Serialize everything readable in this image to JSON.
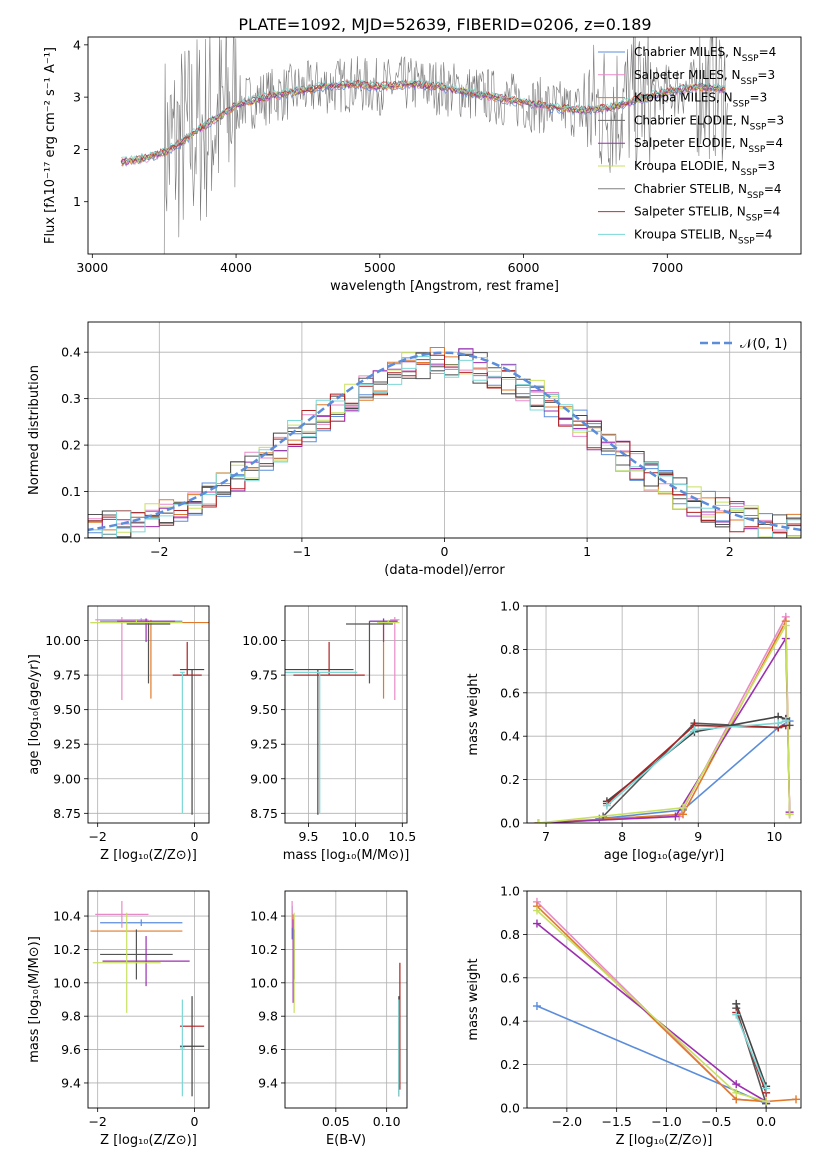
{
  "figure": {
    "title": "PLATE=1092, MJD=52639, FIBERID=0206, z=0.189"
  },
  "colors": [
    "#5b8ddb",
    "#e88ac8",
    "#e07a2a",
    "#555555",
    "#9b2fb0",
    "#c8e060",
    "#444444",
    "#b02020",
    "#7dd8d8"
  ],
  "spectrum_colors": [
    "#5b8ddb",
    "#e88ac8",
    "#e07a2a",
    "#6a6a6a",
    "#9b2fb0",
    "#c8e060",
    "#808080",
    "#c03030",
    "#7ad8d8"
  ],
  "chart_data": [
    {
      "id": "spectrum",
      "type": "line",
      "xlabel": "wavelength [Angstrom, rest frame]",
      "ylabel": "Flux [fλ10⁻¹⁷ erg cm⁻² s⁻¹ A⁻¹]",
      "xlim": [
        2970,
        7930
      ],
      "ylim": [
        0,
        4.15
      ],
      "xticks": [
        3000,
        4000,
        5000,
        6000,
        7000
      ],
      "yticks": [
        1,
        2,
        3,
        4
      ],
      "legend_position": "upper right",
      "model_x": [
        3200,
        3300,
        3400,
        3500,
        3600,
        3700,
        3800,
        3900,
        4000,
        4200,
        4400,
        4600,
        4800,
        5000,
        5200,
        5400,
        5600,
        5800,
        6000,
        6200,
        6400,
        6600,
        6800,
        7000,
        7200,
        7400
      ],
      "model_y": [
        1.75,
        1.8,
        1.85,
        1.95,
        2.1,
        2.3,
        2.5,
        2.65,
        2.85,
        3.0,
        3.1,
        3.2,
        3.25,
        3.2,
        3.25,
        3.2,
        3.1,
        3.0,
        2.9,
        2.8,
        2.75,
        2.8,
        2.95,
        3.1,
        3.2,
        3.15
      ],
      "series": [
        {
          "name": "Chabrier MILES, N_SSP=4",
          "label_main": "Chabrier MILES, N",
          "label_sub": "SSP",
          "label_tail": "=4"
        },
        {
          "name": "Salpeter MILES, N_SSP=3",
          "label_main": "Salpeter MILES, N",
          "label_sub": "SSP",
          "label_tail": "=3"
        },
        {
          "name": "Kroupa MILES, N_SSP=3",
          "label_main": "Kroupa MILES, N",
          "label_sub": "SSP",
          "label_tail": "=3"
        },
        {
          "name": "Chabrier ELODIE, N_SSP=3",
          "label_main": "Chabrier ELODIE, N",
          "label_sub": "SSP",
          "label_tail": "=3"
        },
        {
          "name": "Salpeter ELODIE, N_SSP=4",
          "label_main": "Salpeter ELODIE, N",
          "label_sub": "SSP",
          "label_tail": "=4"
        },
        {
          "name": "Kroupa ELODIE, N_SSP=3",
          "label_main": "Kroupa ELODIE, N",
          "label_sub": "SSP",
          "label_tail": "=3"
        },
        {
          "name": "Chabrier STELIB, N_SSP=4",
          "label_main": "Chabrier STELIB, N",
          "label_sub": "SSP",
          "label_tail": "=4"
        },
        {
          "name": "Salpeter STELIB, N_SSP=4",
          "label_main": "Salpeter STELIB, N",
          "label_sub": "SSP",
          "label_tail": "=4"
        },
        {
          "name": "Kroupa STELIB, N_SSP=4",
          "label_main": "Kroupa STELIB, N",
          "label_sub": "SSP",
          "label_tail": "=4"
        }
      ]
    },
    {
      "id": "residuals",
      "type": "histogram",
      "xlabel": "(data-model)/error",
      "ylabel": "Normed distribution",
      "xlim": [
        -2.5,
        2.5
      ],
      "ylim": [
        0,
        0.465
      ],
      "xticks": [
        -2,
        -1,
        0,
        1,
        2
      ],
      "yticks": [
        0.0,
        0.1,
        0.2,
        0.3,
        0.4
      ],
      "grid": true,
      "bin_width": 0.1,
      "reference_curve": {
        "label": "𝒩(0, 1)",
        "mean": 0,
        "sigma": 1,
        "color": "#5b8ddb"
      },
      "legend_position": "upper right"
    },
    {
      "id": "age_vs_Z",
      "type": "scatter",
      "xlabel": "Z [log₁₀(Z/Z⊙)]",
      "ylabel": "age  [log₁₀(age/yr)]",
      "xlim": [
        -2.2,
        0.3
      ],
      "ylim": [
        8.68,
        10.25
      ],
      "xticks": [
        -2,
        0
      ],
      "yticks": [
        8.75,
        9.0,
        9.25,
        9.5,
        9.75,
        10.0
      ],
      "grid": true,
      "points": [
        {
          "x": -1.1,
          "y": 10.14,
          "xerr": 0.85,
          "yerr_lo": 0.0,
          "yerr_hi": 0.02
        },
        {
          "x": -1.5,
          "y": 10.15,
          "xerr": 0.55,
          "yerr_lo": 0.58,
          "yerr_hi": 0.02
        },
        {
          "x": -0.9,
          "y": 10.13,
          "xerr": 1.25,
          "yerr_lo": 0.55,
          "yerr_hi": 0.02
        },
        {
          "x": -0.95,
          "y": 10.12,
          "xerr": 0.45,
          "yerr_lo": 0.43,
          "yerr_hi": 0.02
        },
        {
          "x": -1.0,
          "y": 10.14,
          "xerr": 0.6,
          "yerr_lo": 0.15,
          "yerr_hi": 0.02
        },
        {
          "x": -1.2,
          "y": 10.13,
          "xerr": 0.95,
          "yerr_lo": 0.0,
          "yerr_hi": 0.02
        },
        {
          "x": -0.05,
          "y": 9.79,
          "xerr": 0.25,
          "yerr_lo": 1.05,
          "yerr_hi": 0.0
        },
        {
          "x": -0.15,
          "y": 9.75,
          "xerr": 0.3,
          "yerr_lo": 0.0,
          "yerr_hi": 0.24
        },
        {
          "x": -0.25,
          "y": 9.77,
          "xerr": 0.05,
          "yerr_lo": 1.02,
          "yerr_hi": 0.0
        }
      ]
    },
    {
      "id": "age_vs_mass",
      "type": "scatter",
      "xlabel": "mass [log₁₀(M/M⊙)]",
      "ylabel": "",
      "xlim": [
        9.25,
        10.55
      ],
      "ylim": [
        8.68,
        10.25
      ],
      "xticks": [
        9.5,
        10.0,
        10.5
      ],
      "yticks": [
        8.75,
        9.0,
        9.25,
        9.5,
        9.75,
        10.0
      ],
      "grid": true,
      "points": [
        {
          "x": 10.3,
          "y": 10.14,
          "xerr": 0.15,
          "yerr_lo": 0.0,
          "yerr_hi": 0.02
        },
        {
          "x": 10.42,
          "y": 10.15,
          "xerr": 0.05,
          "yerr_lo": 0.58,
          "yerr_hi": 0.02
        },
        {
          "x": 10.3,
          "y": 10.13,
          "xerr": 0.05,
          "yerr_lo": 0.55,
          "yerr_hi": 0.02
        },
        {
          "x": 10.15,
          "y": 10.12,
          "xerr": 0.25,
          "yerr_lo": 0.43,
          "yerr_hi": 0.02
        },
        {
          "x": 10.3,
          "y": 10.14,
          "xerr": 0.15,
          "yerr_lo": 0.15,
          "yerr_hi": 0.02
        },
        {
          "x": 10.35,
          "y": 10.13,
          "xerr": 0.12,
          "yerr_lo": 0.0,
          "yerr_hi": 0.02
        },
        {
          "x": 9.6,
          "y": 9.79,
          "xerr": 0.38,
          "yerr_lo": 1.05,
          "yerr_hi": 0.0
        },
        {
          "x": 9.72,
          "y": 9.75,
          "xerr": 0.38,
          "yerr_lo": 0.0,
          "yerr_hi": 0.24
        },
        {
          "x": 9.62,
          "y": 9.77,
          "xerr": 0.4,
          "yerr_lo": 1.02,
          "yerr_hi": 0.0
        }
      ]
    },
    {
      "id": "weight_vs_age",
      "type": "line",
      "xlabel": "age  [log₁₀(age/yr)]",
      "ylabel": "mass weight",
      "xlim": [
        6.75,
        10.35
      ],
      "ylim": [
        0,
        1.0
      ],
      "xticks": [
        7,
        8,
        9,
        10
      ],
      "yticks": [
        0.0,
        0.2,
        0.4,
        0.6,
        0.8,
        1.0
      ],
      "grid": true,
      "series": [
        {
          "x": [
            7.7,
            8.8,
            10.05,
            10.2
          ],
          "y": [
            0.02,
            0.06,
            0.44,
            0.47
          ]
        },
        {
          "x": [
            6.9,
            8.75,
            10.15,
            10.2
          ],
          "y": [
            0.0,
            0.03,
            0.95,
            0.04
          ]
        },
        {
          "x": [
            6.9,
            8.8,
            10.15,
            10.2
          ],
          "y": [
            0.0,
            0.04,
            0.93,
            0.04
          ]
        },
        {
          "x": [
            7.75,
            8.95,
            10.05,
            10.2
          ],
          "y": [
            0.03,
            0.46,
            0.44,
            0.45
          ]
        },
        {
          "x": [
            6.9,
            8.7,
            10.15,
            10.2
          ],
          "y": [
            0.0,
            0.03,
            0.85,
            0.05
          ]
        },
        {
          "x": [
            6.9,
            8.8,
            10.15,
            10.2
          ],
          "y": [
            0.0,
            0.07,
            0.91,
            0.04
          ]
        },
        {
          "x": [
            7.8,
            8.95,
            10.05,
            10.15
          ],
          "y": [
            0.1,
            0.42,
            0.49,
            0.48
          ]
        },
        {
          "x": [
            7.8,
            8.95,
            10.05,
            10.15
          ],
          "y": [
            0.09,
            0.45,
            0.44,
            0.45
          ]
        },
        {
          "x": [
            7.8,
            8.95,
            10.05,
            10.15
          ],
          "y": [
            0.08,
            0.43,
            0.46,
            0.47
          ]
        }
      ]
    },
    {
      "id": "mass_vs_Z",
      "type": "scatter",
      "xlabel": "Z [log₁₀(Z/Z⊙)]",
      "ylabel": "mass [log₁₀(M/M⊙)]",
      "xlim": [
        -2.2,
        0.3
      ],
      "ylim": [
        9.25,
        10.55
      ],
      "xticks": [
        -2,
        0
      ],
      "yticks": [
        9.4,
        9.6,
        9.8,
        10.0,
        10.2,
        10.4
      ],
      "grid": true,
      "points": [
        {
          "x": -1.1,
          "y": 10.36,
          "xerr": 0.85,
          "yerr": 0.02
        },
        {
          "x": -1.5,
          "y": 10.41,
          "xerr": 0.55,
          "yerr": 0.08
        },
        {
          "x": -1.2,
          "y": 10.31,
          "xerr": 0.95,
          "yerr": 0.0
        },
        {
          "x": -1.2,
          "y": 10.17,
          "xerr": 0.75,
          "yerr": 0.15
        },
        {
          "x": -1.0,
          "y": 10.13,
          "xerr": 0.9,
          "yerr": 0.15
        },
        {
          "x": -1.4,
          "y": 10.12,
          "xerr": 0.7,
          "yerr": 0.3
        },
        {
          "x": -0.05,
          "y": 9.62,
          "xerr": 0.25,
          "yerr": 0.3
        },
        {
          "x": -0.05,
          "y": 9.74,
          "xerr": 0.25,
          "yerr": 0.0
        },
        {
          "x": -0.25,
          "y": 9.61,
          "xerr": 0.05,
          "yerr": 0.29
        }
      ]
    },
    {
      "id": "mass_vs_EBV",
      "type": "scatter",
      "xlabel": "E(B-V)",
      "ylabel": "",
      "xlim": [
        0.0,
        0.12
      ],
      "ylim": [
        9.25,
        10.55
      ],
      "xticks": [
        0.05,
        0.1
      ],
      "yticks": [
        9.4,
        9.6,
        9.8,
        10.0,
        10.2,
        10.4
      ],
      "grid": true,
      "points": [
        {
          "x": 0.007,
          "y": 10.36,
          "xerr": 0.0,
          "yerr": 0.1
        },
        {
          "x": 0.007,
          "y": 10.41,
          "xerr": 0.0,
          "yerr": 0.08
        },
        {
          "x": 0.008,
          "y": 10.31,
          "xerr": 0.0,
          "yerr": 0.1
        },
        {
          "x": 0.009,
          "y": 10.17,
          "xerr": 0.0,
          "yerr": 0.15
        },
        {
          "x": 0.008,
          "y": 10.13,
          "xerr": 0.0,
          "yerr": 0.25
        },
        {
          "x": 0.009,
          "y": 10.12,
          "xerr": 0.0,
          "yerr": 0.3
        },
        {
          "x": 0.112,
          "y": 9.62,
          "xerr": 0.0,
          "yerr": 0.3
        },
        {
          "x": 0.113,
          "y": 9.74,
          "xerr": 0.0,
          "yerr": 0.38
        },
        {
          "x": 0.112,
          "y": 9.61,
          "xerr": 0.0,
          "yerr": 0.29
        }
      ]
    },
    {
      "id": "weight_vs_Z",
      "type": "line",
      "xlabel": "Z [log₁₀(Z/Z⊙)]",
      "ylabel": "mass weight",
      "xlim": [
        -2.4,
        0.35
      ],
      "ylim": [
        0,
        1.0
      ],
      "xticks": [
        -2.0,
        -1.5,
        -1.0,
        -0.5,
        0.0
      ],
      "yticks": [
        0.0,
        0.2,
        0.4,
        0.6,
        0.8,
        1.0
      ],
      "grid": true,
      "series": [
        {
          "x": [
            -2.3,
            0.0,
            0.0
          ],
          "y": [
            0.47,
            0.02,
            0.03
          ]
        },
        {
          "x": [
            -2.3,
            -0.3,
            0.0
          ],
          "y": [
            0.95,
            0.04,
            0.03
          ]
        },
        {
          "x": [
            -2.3,
            -0.3,
            0.0,
            0.3
          ],
          "y": [
            0.93,
            0.04,
            0.03,
            0.04
          ]
        },
        {
          "x": [
            -0.3,
            0.0
          ],
          "y": [
            0.46,
            0.02
          ]
        },
        {
          "x": [
            -2.3,
            -0.3,
            0.0
          ],
          "y": [
            0.85,
            0.11,
            0.03
          ]
        },
        {
          "x": [
            -2.3,
            -0.3,
            0.0
          ],
          "y": [
            0.91,
            0.07,
            0.03
          ]
        },
        {
          "x": [
            -0.3,
            0.0
          ],
          "y": [
            0.48,
            0.1
          ]
        },
        {
          "x": [
            -0.3,
            0.0
          ],
          "y": [
            0.44,
            0.07
          ]
        },
        {
          "x": [
            -0.3,
            0.0
          ],
          "y": [
            0.43,
            0.09
          ]
        }
      ]
    }
  ]
}
